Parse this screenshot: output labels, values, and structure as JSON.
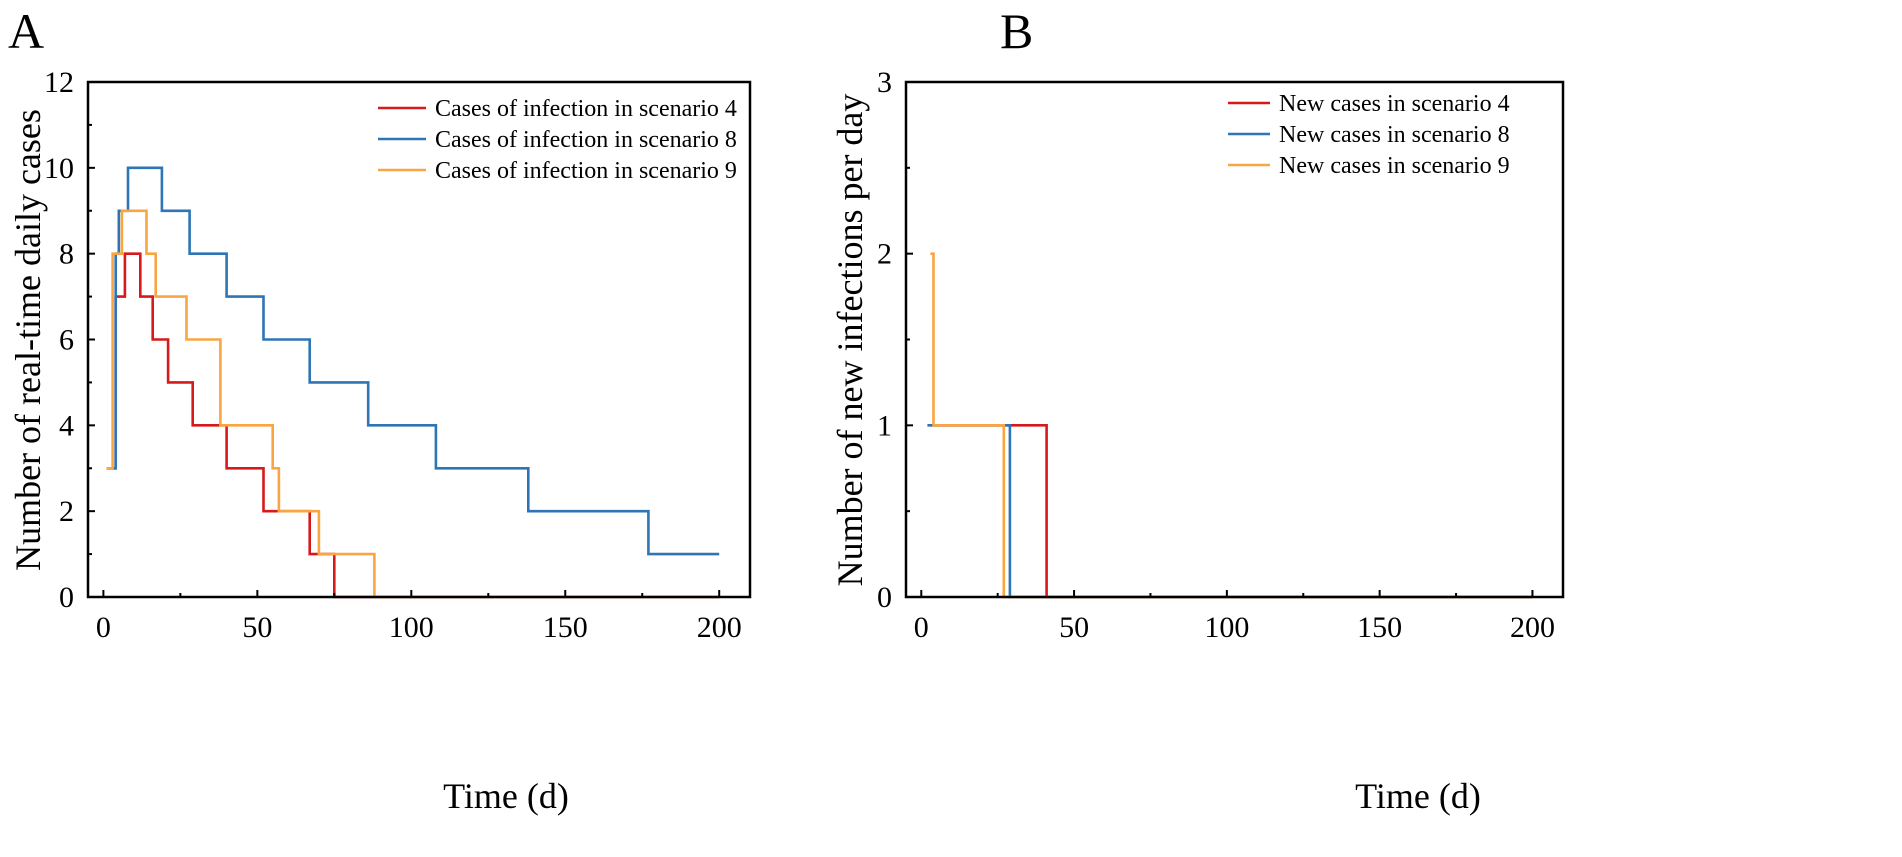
{
  "panels": [
    {
      "letter": "A",
      "chart_data": {
        "type": "line",
        "step": true,
        "xlabel": "Time (d)",
        "ylabel": "Number of real-time daily cases",
        "xlim": [
          -5,
          210
        ],
        "ylim": [
          0,
          12
        ],
        "xticks": [
          0,
          50,
          100,
          150,
          200
        ],
        "yticks": [
          0,
          2,
          4,
          6,
          8,
          10,
          12
        ],
        "legend_position": "top-right",
        "series": [
          {
            "name": "Cases of infection in scenario 4",
            "color": "#d7191c",
            "points": [
              [
                1,
                3
              ],
              [
                4,
                7
              ],
              [
                7,
                8
              ],
              [
                12,
                7
              ],
              [
                16,
                6
              ],
              [
                21,
                5
              ],
              [
                29,
                4
              ],
              [
                40,
                3
              ],
              [
                52,
                2
              ],
              [
                67,
                1
              ],
              [
                75,
                0
              ],
              [
                200,
                0
              ]
            ]
          },
          {
            "name": "Cases of infection in scenario 8",
            "color": "#2e75b6",
            "points": [
              [
                1,
                3
              ],
              [
                4,
                8
              ],
              [
                5,
                9
              ],
              [
                8,
                10
              ],
              [
                19,
                9
              ],
              [
                28,
                8
              ],
              [
                40,
                7
              ],
              [
                52,
                6
              ],
              [
                67,
                5
              ],
              [
                86,
                4
              ],
              [
                108,
                3
              ],
              [
                138,
                2
              ],
              [
                177,
                1
              ],
              [
                200,
                1
              ]
            ]
          },
          {
            "name": "Cases of infection in scenario 9",
            "color": "#f9a541",
            "points": [
              [
                1,
                3
              ],
              [
                3,
                8
              ],
              [
                6,
                9
              ],
              [
                14,
                8
              ],
              [
                17,
                7
              ],
              [
                27,
                6
              ],
              [
                38,
                4
              ],
              [
                55,
                3
              ],
              [
                57,
                2
              ],
              [
                70,
                1
              ],
              [
                88,
                0
              ],
              [
                200,
                0
              ]
            ]
          }
        ]
      }
    },
    {
      "letter": "B",
      "chart_data": {
        "type": "line",
        "step": true,
        "xlabel": "Time (d)",
        "ylabel": "Number of new infections per day",
        "xlim": [
          -5,
          210
        ],
        "ylim": [
          0,
          3
        ],
        "xticks": [
          0,
          50,
          100,
          150,
          200
        ],
        "yticks": [
          0,
          1,
          2,
          3
        ],
        "legend_position": "top-right",
        "series": [
          {
            "name": "New cases in scenario 4",
            "color": "#d7191c",
            "points": [
              [
                3,
                1
              ],
              [
                41,
                0
              ],
              [
                200,
                0
              ]
            ]
          },
          {
            "name": "New cases in scenario 8",
            "color": "#2e75b6",
            "points": [
              [
                2,
                1
              ],
              [
                29,
                0
              ],
              [
                200,
                0
              ]
            ]
          },
          {
            "name": "New cases in scenario 9",
            "color": "#f9a541",
            "points": [
              [
                3,
                2
              ],
              [
                4,
                1
              ],
              [
                27,
                0
              ],
              [
                200,
                0
              ]
            ]
          }
        ]
      }
    }
  ]
}
